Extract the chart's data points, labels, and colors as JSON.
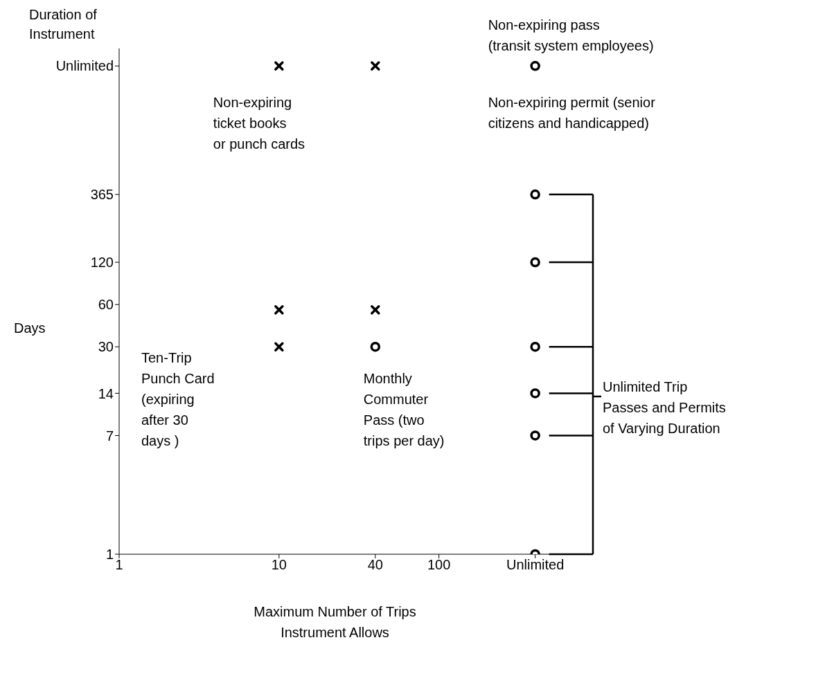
{
  "chart_data": {
    "type": "scatter",
    "title": "Duration of Instrument",
    "ylabel": "Days",
    "xlabel": "Maximum Number of Trips Instrument Allows",
    "log": "xy",
    "xlim": [
      1,
      500
    ],
    "ylim": [
      1,
      4000
    ],
    "xticks": [
      1,
      10,
      40,
      100,
      {
        "value": 400,
        "label": "Unlimited"
      }
    ],
    "yticks": [
      1,
      7,
      14,
      30,
      60,
      120,
      365,
      {
        "value": 3000,
        "label": "Unlimited"
      }
    ],
    "series": [
      {
        "marker": "cross",
        "color": "#000000",
        "x": [
          10,
          40,
          10,
          10,
          40
        ],
        "values": [
          3000,
          3000,
          55,
          30,
          55
        ]
      },
      {
        "marker": "circle",
        "color": "#000000",
        "x": [
          400,
          400,
          400,
          40,
          400,
          400,
          400,
          400
        ],
        "values": [
          3000,
          365,
          120,
          30,
          30,
          14,
          7,
          1
        ]
      }
    ],
    "annotations": [
      {
        "text": "Non-expiring pass (transit system employees)",
        "x": 400,
        "y": 3000
      },
      {
        "text": "Non-expiring permit (senior citizens and handicapped)",
        "x": 400,
        "y": 3000
      },
      {
        "text": "Non-expiring ticket books or punch cards",
        "x": 10,
        "y": 3000
      },
      "Ten-Trip Punch Card (expiring after 30 days )",
      {
        "text": "Monthly Commuter Pass (two trips per day)",
        "x": 40,
        "y": 30
      },
      "Unlimited Trip Passes and Permits of Varying Duration"
    ]
  }
}
